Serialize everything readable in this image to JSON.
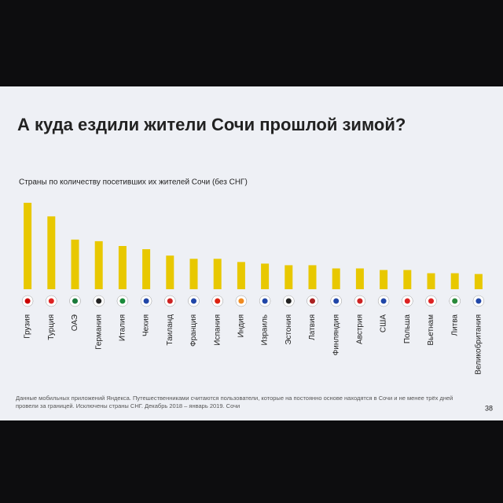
{
  "chart_data": {
    "type": "bar",
    "title": "А куда ездили жители Сочи прошлой зимой?",
    "subtitle": "Страны по количеству посетивших их жителей Сочи (без СНГ)",
    "categories": [
      "Грузия",
      "Турция",
      "ОАЭ",
      "Германия",
      "Италия",
      "Чехия",
      "Таиланд",
      "Франция",
      "Испания",
      "Индия",
      "Израиль",
      "Эстония",
      "Латвия",
      "Финляндия",
      "Австрия",
      "США",
      "Польша",
      "Вьетнам",
      "Литва",
      "Великобритания"
    ],
    "values": [
      108,
      91,
      62,
      60,
      54,
      50,
      42,
      38,
      38,
      34,
      32,
      30,
      30,
      26,
      26,
      24,
      24,
      20,
      20,
      19
    ],
    "color": "#e8c800",
    "footnote": "Данные мобильных приложений Яндекса. Путешественниками считаются пользователи, которые на постоянно основе находятся в Сочи и не менее трёх дней провели за границей. Исключены страны СНГ. Декабрь 2018 – январь 2019. Сочи",
    "page_number": "38"
  }
}
